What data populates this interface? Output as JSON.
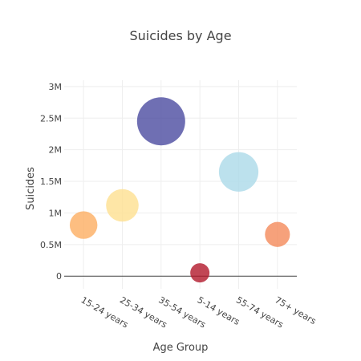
{
  "chart_data": {
    "type": "scatter",
    "title": "Suicides by Age",
    "xlabel": "Age Group",
    "ylabel": "Suicides",
    "categories": [
      "15-24 years",
      "25-34 years",
      "35-54 years",
      "5-14 years",
      "55-74 years",
      "75+ years"
    ],
    "values": [
      808000,
      1120000,
      2450000,
      52000,
      1650000,
      660000
    ],
    "colors": [
      "#fdae61",
      "#fee090",
      "#4b4ba0",
      "#b2182b",
      "#abd9e9",
      "#f4895a"
    ],
    "ylim": [
      -200000,
      3100000
    ],
    "yticks": [
      0,
      500000,
      1000000,
      1500000,
      2000000,
      2500000,
      3000000
    ],
    "ytick_labels": [
      "0",
      "0.5M",
      "1M",
      "1.5M",
      "2M",
      "2.5M",
      "3M"
    ],
    "grid": true,
    "legend": "none"
  }
}
